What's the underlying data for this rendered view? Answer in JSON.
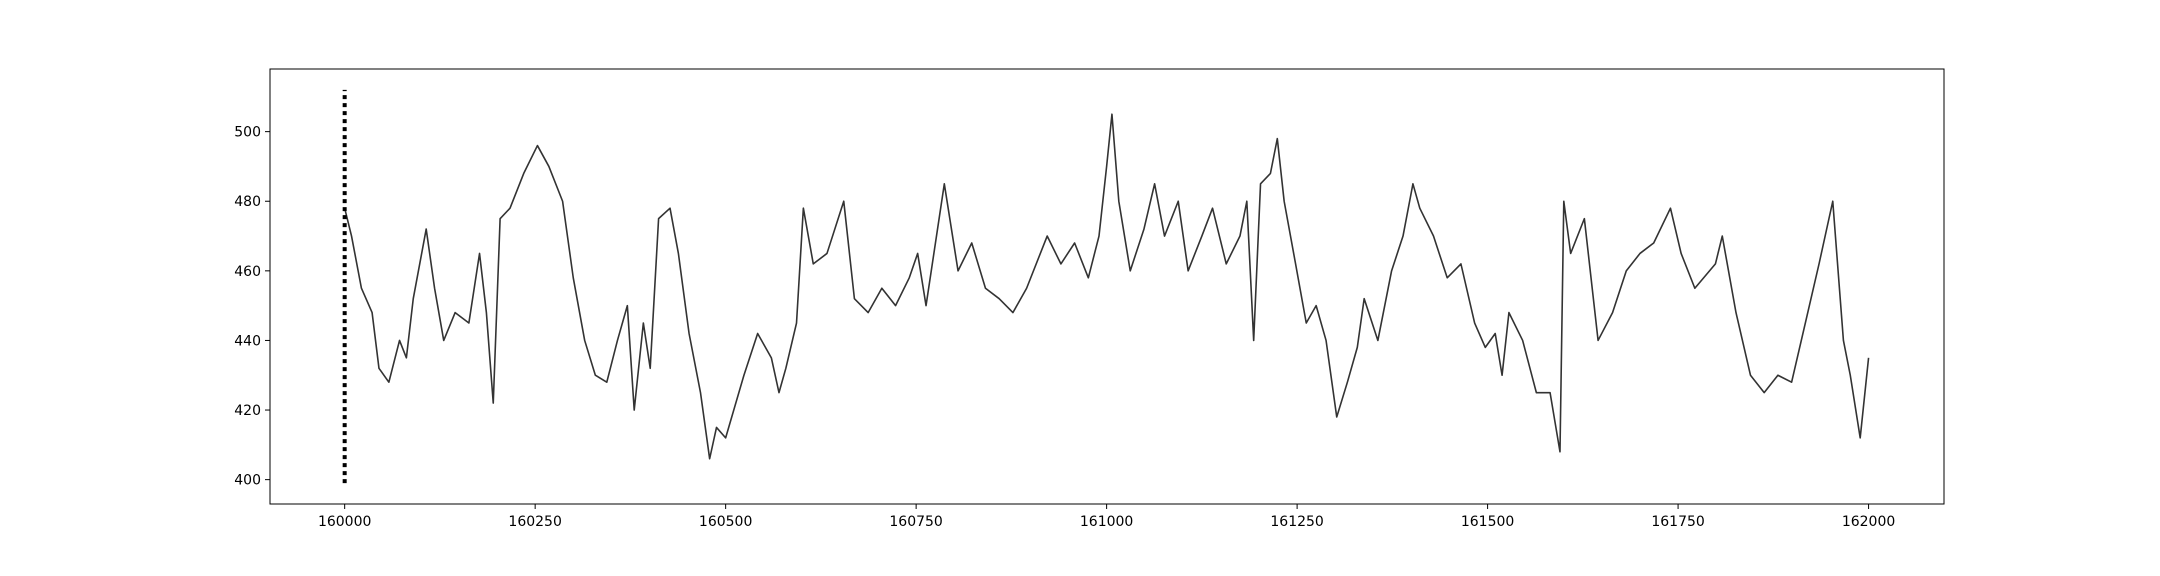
{
  "chart_data": {
    "type": "line",
    "x": [
      160000,
      160009,
      160022,
      160036,
      160045,
      160058,
      160072,
      160081,
      160090,
      160107,
      160118,
      160130,
      160145,
      160163,
      160177,
      160186,
      160195,
      160204,
      160217,
      160235,
      160253,
      160268,
      160286,
      160300,
      160315,
      160329,
      160344,
      160358,
      160371,
      160380,
      160392,
      160401,
      160412,
      160427,
      160438,
      160452,
      160467,
      160479,
      160488,
      160500,
      160524,
      160542,
      160560,
      160570,
      160579,
      160593,
      160602,
      160615,
      160633,
      160655,
      160669,
      160687,
      160705,
      160723,
      160741,
      160752,
      160763,
      160787,
      160805,
      160823,
      160841,
      160859,
      160877,
      160895,
      160922,
      160940,
      160958,
      160976,
      160990,
      161000,
      161007,
      161016,
      161031,
      161049,
      161063,
      161076,
      161094,
      161107,
      161125,
      161139,
      161157,
      161175,
      161184,
      161193,
      161202,
      161215,
      161224,
      161233,
      161248,
      161262,
      161275,
      161288,
      161302,
      161316,
      161329,
      161338,
      161356,
      161374,
      161389,
      161402,
      161411,
      161429,
      161447,
      161465,
      161483,
      161497,
      161510,
      161519,
      161528,
      161546,
      161564,
      161582,
      161595,
      161600,
      161609,
      161627,
      161645,
      161664,
      161682,
      161700,
      161718,
      161740,
      161754,
      161772,
      161799,
      161808,
      161826,
      161845,
      161863,
      161881,
      161899,
      161917,
      161935,
      161953,
      161967,
      161976,
      161989,
      162000
    ],
    "values": [
      478,
      470,
      455,
      448,
      432,
      428,
      440,
      435,
      452,
      472,
      455,
      440,
      448,
      445,
      465,
      448,
      422,
      475,
      478,
      488,
      496,
      490,
      480,
      458,
      440,
      430,
      428,
      440,
      450,
      420,
      445,
      432,
      475,
      478,
      465,
      442,
      425,
      406,
      415,
      412,
      430,
      442,
      435,
      425,
      432,
      445,
      478,
      462,
      465,
      480,
      452,
      448,
      455,
      450,
      458,
      465,
      450,
      485,
      460,
      468,
      455,
      452,
      448,
      455,
      470,
      462,
      468,
      458,
      470,
      490,
      505,
      480,
      460,
      472,
      485,
      470,
      480,
      460,
      470,
      478,
      462,
      470,
      480,
      440,
      485,
      488,
      498,
      480,
      462,
      445,
      450,
      440,
      418,
      428,
      438,
      452,
      440,
      460,
      470,
      485,
      478,
      470,
      458,
      462,
      445,
      438,
      442,
      430,
      448,
      440,
      425,
      425,
      408,
      480,
      465,
      475,
      440,
      448,
      460,
      465,
      468,
      478,
      465,
      455,
      462,
      470,
      448,
      430,
      425,
      430,
      428,
      445,
      462,
      480,
      440,
      430,
      412,
      435
    ],
    "color": "#333333",
    "xlim": [
      159902,
      162099
    ],
    "ylim": [
      393,
      518
    ],
    "xticks": [
      160000,
      160250,
      160500,
      160750,
      161000,
      161250,
      161500,
      161750,
      162000
    ],
    "yticks": [
      400,
      420,
      440,
      460,
      480,
      500
    ],
    "vline": {
      "x": 160000,
      "ymin": 399,
      "ymax": 512,
      "color": "#000000"
    }
  }
}
